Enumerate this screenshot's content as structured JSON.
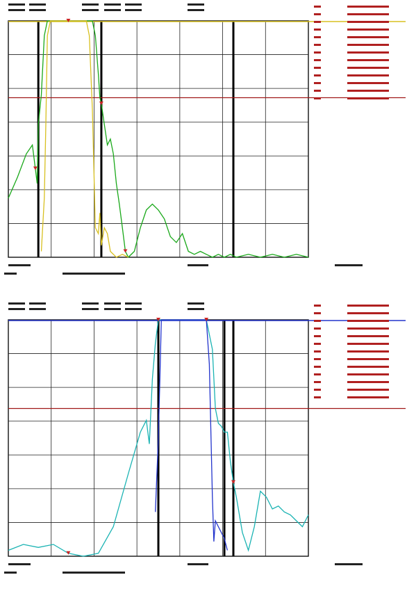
{
  "chart_data": [
    {
      "type": "line",
      "xlim": [
        0,
        100
      ],
      "ylim": [
        -80,
        0
      ],
      "grid": true,
      "colors": {
        "primary": "#19a819",
        "secondary": "#d8c020",
        "limit": "#a01818",
        "edge": "#000000"
      },
      "edge_lines": [
        10,
        31,
        75
      ],
      "limit_level": -26,
      "series": [
        {
          "color": "#19a819",
          "x": [
            0,
            3,
            6,
            8,
            9,
            9.6,
            10,
            11,
            12,
            13,
            14,
            15,
            16,
            18,
            20,
            22,
            24,
            26,
            28,
            29,
            30,
            30.5,
            31,
            32,
            33,
            34,
            35,
            36,
            37,
            38,
            39,
            40,
            42,
            44,
            46,
            48,
            50,
            52,
            54,
            56,
            58,
            60,
            62,
            64,
            66,
            68,
            70,
            72,
            74,
            76,
            80,
            84,
            88,
            92,
            96,
            100
          ],
          "y": [
            -60,
            -53,
            -45,
            -42,
            -50,
            -55,
            -35,
            -25,
            -5,
            0,
            0,
            0,
            0,
            0,
            0,
            0,
            0,
            0,
            0,
            -5,
            -18,
            -26,
            -28,
            -35,
            -42,
            -40,
            -45,
            -55,
            -62,
            -70,
            -78,
            -80,
            -78,
            -70,
            -64,
            -62,
            -64,
            -67,
            -73,
            -75,
            -72,
            -78,
            -79,
            -78,
            -79,
            -80,
            -79,
            -80,
            -79,
            -80,
            -79,
            -80,
            -79,
            -80,
            -79,
            -80
          ]
        },
        {
          "color": "#d8c020",
          "x": [
            11,
            12,
            12.5,
            13,
            14,
            15,
            16,
            18,
            20,
            22,
            24,
            26,
            27,
            28,
            29,
            30,
            30.5,
            31,
            32,
            33,
            34,
            36,
            38,
            40
          ],
          "y": [
            -78,
            -60,
            -35,
            -5,
            0,
            0,
            0,
            0,
            0,
            0,
            0,
            0,
            -5,
            -30,
            -70,
            -72,
            -65,
            -76,
            -70,
            -72,
            -78,
            -80,
            -79,
            -80
          ]
        }
      ]
    },
    {
      "type": "line",
      "xlim": [
        0,
        100
      ],
      "ylim": [
        -80,
        0
      ],
      "grid": true,
      "colors": {
        "primary": "#1ab3b3",
        "secondary": "#2233cc",
        "limit": "#a01818",
        "edge": "#000000"
      },
      "edge_lines": [
        50,
        72,
        75
      ],
      "limit_level": -30,
      "series": [
        {
          "color": "#1ab3b3",
          "x": [
            0,
            5,
            10,
            15,
            20,
            25,
            30,
            35,
            40,
            44,
            46,
            47,
            48,
            49,
            50,
            51,
            52,
            53,
            54,
            56,
            60,
            64,
            66,
            68,
            69,
            70,
            71,
            72,
            73,
            74,
            75,
            76,
            78,
            80,
            82,
            84,
            86,
            88,
            90,
            92,
            94,
            96,
            98,
            100
          ],
          "y": [
            -78,
            -76,
            -77,
            -76,
            -79,
            -80,
            -79,
            -70,
            -52,
            -38,
            -34,
            -42,
            -20,
            -8,
            0,
            0,
            0,
            0,
            0,
            0,
            0,
            0,
            0,
            -10,
            -30,
            -35,
            -36,
            -38,
            -38,
            -48,
            -55,
            -60,
            -72,
            -78,
            -70,
            -58,
            -60,
            -64,
            -63,
            -65,
            -66,
            -68,
            -70,
            -66
          ]
        },
        {
          "color": "#2233cc",
          "x": [
            49,
            50,
            50.5,
            51,
            52,
            54,
            56,
            58,
            60,
            62,
            64,
            66,
            67,
            68,
            68.5,
            69,
            70,
            71,
            72,
            73
          ],
          "y": [
            -65,
            -40,
            -20,
            0,
            0,
            0,
            0,
            0,
            0,
            0,
            0,
            0,
            -15,
            -60,
            -75,
            -68,
            -70,
            -72,
            -74,
            -78
          ]
        }
      ]
    }
  ]
}
